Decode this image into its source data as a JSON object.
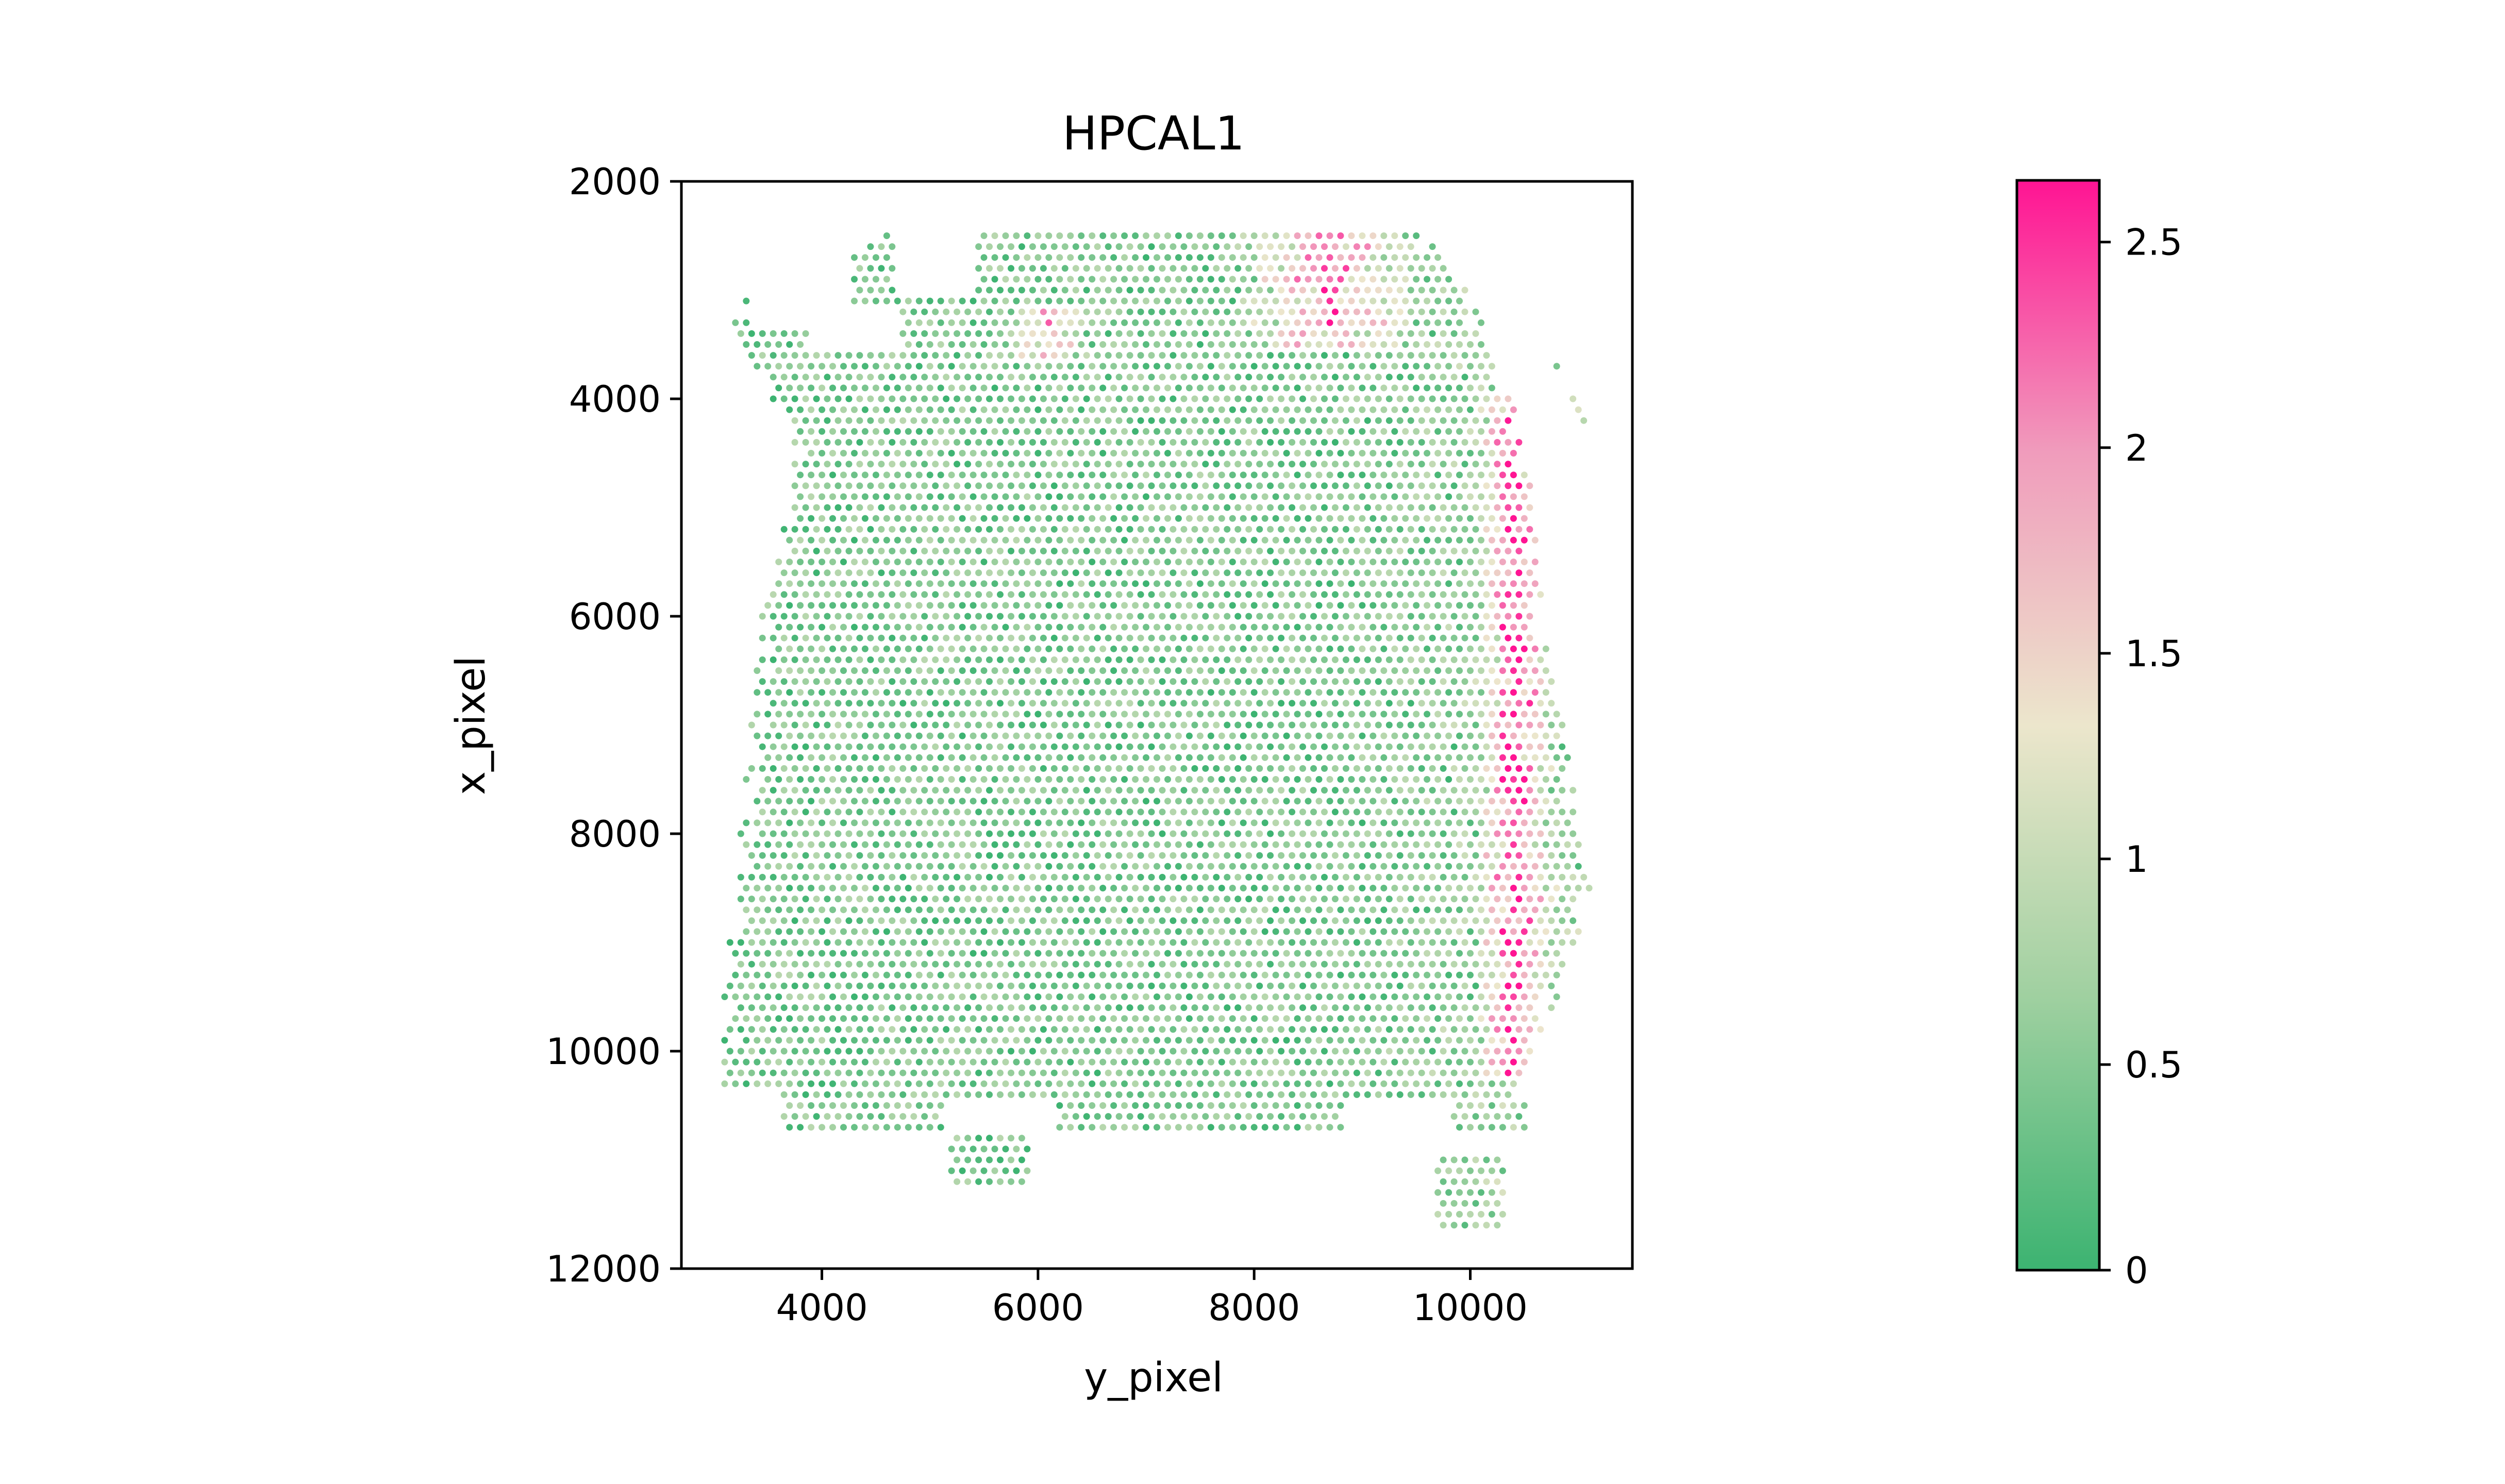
{
  "chart_data": {
    "type": "scatter",
    "title": "HPCAL1",
    "xlabel": "y_pixel",
    "ylabel": "x_pixel",
    "xlim": [
      2700,
      11500
    ],
    "ylim": [
      12000,
      2000
    ],
    "y_inverted": true,
    "xticks": [
      4000,
      6000,
      8000,
      10000
    ],
    "xtick_labels": [
      "4000",
      "6000",
      "8000",
      "10000"
    ],
    "yticks": [
      2000,
      4000,
      6000,
      8000,
      10000,
      12000
    ],
    "ytick_labels": [
      "2000",
      "4000",
      "6000",
      "8000",
      "10000",
      "12000"
    ],
    "grid": false,
    "spot_spacing_data_units": [
      100,
      200
    ],
    "colorbar": {
      "min": 0,
      "max": 2.65,
      "ticks": [
        0,
        0.5,
        1,
        1.5,
        2,
        2.5
      ],
      "tick_labels": [
        "0",
        "0.5",
        "1",
        "1.5",
        "2",
        "2.5"
      ],
      "colors": [
        "#3cb371",
        "#9fd0a0",
        "#ece6cc",
        "#f09cbc",
        "#ff1493"
      ]
    },
    "tissue_outline_rows": [
      {
        "y": 2500,
        "x0": 4550,
        "x1": 9550
      },
      {
        "y": 2700,
        "x0": 4200,
        "x1": 9750
      },
      {
        "y": 2900,
        "x0": 3500,
        "x1": 9900
      },
      {
        "y": 3100,
        "x0": 3300,
        "x1": 10000
      },
      {
        "y": 3300,
        "x0": 3200,
        "x1": 10100
      },
      {
        "y": 3600,
        "x0": 3250,
        "x1": 10200
      },
      {
        "y": 3900,
        "x0": 3450,
        "x1": 10400
      },
      {
        "y": 4200,
        "x0": 3700,
        "x1": 10500
      },
      {
        "y": 4600,
        "x0": 3750,
        "x1": 10550
      },
      {
        "y": 5000,
        "x0": 3700,
        "x1": 10600
      },
      {
        "y": 5500,
        "x0": 3550,
        "x1": 10600
      },
      {
        "y": 6000,
        "x0": 3450,
        "x1": 10700
      },
      {
        "y": 6500,
        "x0": 3400,
        "x1": 10750
      },
      {
        "y": 7000,
        "x0": 3350,
        "x1": 10900
      },
      {
        "y": 7500,
        "x0": 3300,
        "x1": 10950
      },
      {
        "y": 8000,
        "x0": 3250,
        "x1": 11000
      },
      {
        "y": 8500,
        "x0": 3200,
        "x1": 11100
      },
      {
        "y": 9000,
        "x0": 3150,
        "x1": 11000
      },
      {
        "y": 9500,
        "x0": 3100,
        "x1": 10800
      },
      {
        "y": 10000,
        "x0": 3100,
        "x1": 10600
      },
      {
        "y": 10400,
        "x0": 3100,
        "x1": 10400
      },
      {
        "y": 10700,
        "x0": 3100,
        "x1": 10700
      }
    ],
    "tissue_gaps": [
      {
        "y0": 2450,
        "y1": 3000,
        "x0": 4700,
        "x1": 5400
      },
      {
        "y0": 2700,
        "y1": 3300,
        "x0": 3350,
        "x1": 4250
      },
      {
        "y0": 3150,
        "y1": 3550,
        "x0": 3900,
        "x1": 4700
      },
      {
        "y0": 10400,
        "y1": 10800,
        "x0": 3100,
        "x1": 3600
      },
      {
        "y0": 10500,
        "y1": 10800,
        "x0": 5150,
        "x1": 6150
      },
      {
        "y0": 10450,
        "y1": 10800,
        "x0": 8850,
        "x1": 9800
      },
      {
        "y0": 10800,
        "y1": 12000,
        "x0": 2700,
        "x1": 11500
      }
    ],
    "detached_clusters": [
      {
        "y0": 10800,
        "y1": 11250,
        "x0": 5200,
        "x1": 5900
      },
      {
        "y0": 10950,
        "y1": 11600,
        "x0": 9700,
        "x1": 10300
      },
      {
        "y0": 3650,
        "y1": 3750,
        "x0": 10800,
        "x1": 10850
      },
      {
        "y0": 4000,
        "y1": 4200,
        "x0": 10950,
        "x1": 11100
      }
    ],
    "high_expression_bands": [
      {
        "x_center": 10400,
        "x_width": 350,
        "y0": 4000,
        "y1": 10200,
        "level": 2.2
      },
      {
        "x_center": 8700,
        "x_width": 900,
        "y0": 2500,
        "y1": 3500,
        "level": 1.9
      },
      {
        "x_center": 6100,
        "x_width": 400,
        "y0": 3200,
        "y1": 3600,
        "level": 1.6
      }
    ],
    "background_level": 0.35
  }
}
